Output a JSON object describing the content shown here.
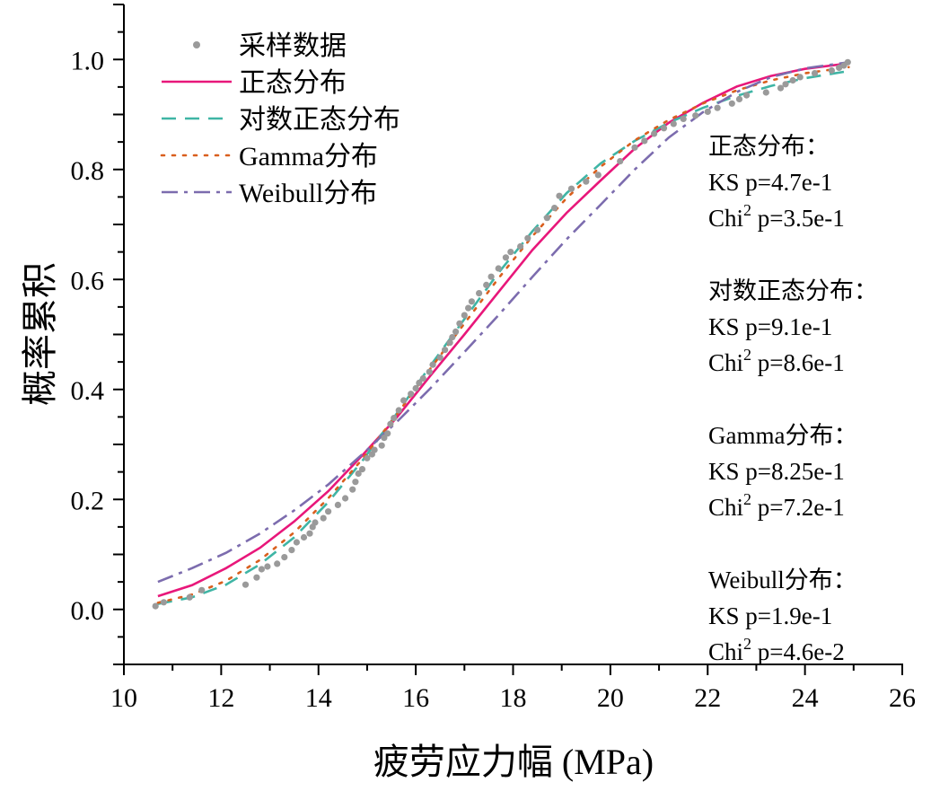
{
  "chart_data": {
    "type": "scatter+line",
    "xlabel": "疲劳应力幅 (MPa)",
    "ylabel": "概率累积",
    "xlim": [
      10,
      26
    ],
    "ylim": [
      -0.1,
      1.1
    ],
    "xticks": [
      10,
      12,
      14,
      16,
      18,
      20,
      22,
      24,
      26
    ],
    "xtick_labels": [
      "10",
      "12",
      "14",
      "16",
      "18",
      "20",
      "22",
      "24",
      "26"
    ],
    "yticks": [
      0.0,
      0.2,
      0.4,
      0.6,
      0.8,
      1.0
    ],
    "ytick_labels": [
      "0.0",
      "0.2",
      "0.4",
      "0.6",
      "0.8",
      "1.0"
    ],
    "colors": {
      "sample": "#9a9a9a",
      "normal": "#e8177a",
      "lognormal": "#3fb5a5",
      "gamma": "#d95f1e",
      "weibull": "#7c6cae"
    },
    "legend": {
      "position": "top-left",
      "entries": [
        {
          "label": "采样数据",
          "style": "points",
          "color": "#9a9a9a"
        },
        {
          "label": "正态分布",
          "style": "solid",
          "color": "#e8177a"
        },
        {
          "label": "对数正态分布",
          "style": "dashed",
          "color": "#3fb5a5"
        },
        {
          "label": "Gamma分布",
          "style": "dotted",
          "color": "#d95f1e"
        },
        {
          "label": "Weibull分布",
          "style": "dashdot",
          "color": "#7c6cae"
        }
      ]
    },
    "annotations": {
      "position": "right",
      "groups": [
        {
          "title": "正态分布：",
          "ks": "KS p=4.7e-1",
          "chi_prefix": "Chi",
          "chi_sup": "2",
          "chi_value": " p=3.5e-1"
        },
        {
          "title": "对数正态分布：",
          "ks": "KS p=9.1e-1",
          "chi_prefix": "Chi",
          "chi_sup": "2",
          "chi_value": " p=8.6e-1"
        },
        {
          "title": "Gamma分布：",
          "ks": "KS p=8.25e-1",
          "chi_prefix": "Chi",
          "chi_sup": "2",
          "chi_value": " p=7.2e-1"
        },
        {
          "title": "Weibull分布：",
          "ks": "KS p=1.9e-1",
          "chi_prefix": "Chi",
          "chi_sup": "2",
          "chi_value": " p=4.6e-2"
        }
      ]
    },
    "series": [
      {
        "name": "正态分布",
        "style": "solid",
        "x": [
          10.7,
          11.4,
          12.1,
          12.8,
          13.5,
          14.2,
          14.9,
          15.6,
          16.3,
          17.0,
          17.7,
          18.4,
          19.1,
          19.8,
          20.5,
          21.2,
          21.9,
          22.6,
          23.3,
          24.0,
          24.9
        ],
        "y": [
          0.024,
          0.044,
          0.075,
          0.112,
          0.16,
          0.215,
          0.28,
          0.348,
          0.425,
          0.5,
          0.577,
          0.654,
          0.721,
          0.78,
          0.838,
          0.885,
          0.921,
          0.951,
          0.97,
          0.983,
          0.993
        ]
      },
      {
        "name": "对数正态分布",
        "style": "dashed",
        "x": [
          10.7,
          11.4,
          12.1,
          12.8,
          13.5,
          14.2,
          14.9,
          15.6,
          16.3,
          17.0,
          17.7,
          18.4,
          19.1,
          19.8,
          20.5,
          21.2,
          21.9,
          22.6,
          23.3,
          24.0,
          24.9
        ],
        "y": [
          0.01,
          0.022,
          0.045,
          0.082,
          0.131,
          0.195,
          0.27,
          0.355,
          0.443,
          0.528,
          0.612,
          0.688,
          0.757,
          0.811,
          0.852,
          0.885,
          0.912,
          0.934,
          0.952,
          0.966,
          0.979
        ]
      },
      {
        "name": "Gamma分布",
        "style": "dotted",
        "x": [
          10.7,
          11.4,
          12.1,
          12.8,
          13.5,
          14.2,
          14.9,
          15.6,
          16.3,
          17.0,
          17.7,
          18.4,
          19.1,
          19.8,
          20.5,
          21.2,
          21.9,
          22.6,
          23.3,
          24.0,
          24.9
        ],
        "y": [
          0.012,
          0.027,
          0.052,
          0.09,
          0.14,
          0.202,
          0.273,
          0.353,
          0.438,
          0.52,
          0.602,
          0.679,
          0.748,
          0.805,
          0.853,
          0.89,
          0.92,
          0.944,
          0.962,
          0.975,
          0.986
        ]
      },
      {
        "name": "Weibull分布",
        "style": "dashdot",
        "x": [
          10.7,
          11.4,
          12.1,
          12.8,
          13.5,
          14.2,
          14.9,
          15.6,
          16.3,
          17.0,
          17.7,
          18.4,
          19.1,
          19.8,
          20.5,
          21.2,
          21.9,
          22.6,
          23.3,
          24.0,
          24.9
        ],
        "y": [
          0.05,
          0.075,
          0.103,
          0.138,
          0.18,
          0.227,
          0.282,
          0.34,
          0.402,
          0.468,
          0.535,
          0.605,
          0.673,
          0.736,
          0.8,
          0.858,
          0.904,
          0.941,
          0.968,
          0.984,
          0.995
        ]
      }
    ],
    "samples": {
      "name": "采样数据",
      "style": "points",
      "x": [
        10.65,
        10.82,
        11.35,
        11.6,
        12.5,
        12.73,
        12.83,
        12.95,
        13.15,
        13.3,
        13.45,
        13.55,
        13.7,
        13.82,
        13.88,
        13.93,
        14.1,
        14.2,
        14.4,
        14.55,
        14.7,
        14.76,
        14.82,
        14.9,
        15.0,
        15.1,
        15.15,
        15.3,
        15.35,
        15.42,
        15.48,
        15.55,
        15.65,
        15.75,
        15.9,
        16.0,
        16.07,
        16.15,
        16.28,
        16.35,
        16.5,
        16.6,
        16.7,
        16.75,
        16.82,
        16.9,
        17.0,
        17.08,
        17.15,
        17.3,
        17.45,
        17.55,
        17.7,
        17.85,
        17.95,
        18.15,
        18.3,
        18.5,
        18.7,
        18.85,
        18.95,
        19.2,
        19.5,
        19.75,
        20.2,
        20.5,
        20.7,
        20.9,
        21.1,
        21.3,
        21.5,
        21.75,
        22.0,
        22.2,
        22.5,
        22.65,
        22.8,
        23.2,
        23.5,
        23.6,
        23.75,
        23.9,
        24.2,
        24.55,
        24.7,
        24.8,
        24.88
      ],
      "y": [
        0.006,
        0.013,
        0.022,
        0.035,
        0.045,
        0.058,
        0.073,
        0.078,
        0.083,
        0.095,
        0.108,
        0.122,
        0.131,
        0.138,
        0.15,
        0.158,
        0.166,
        0.178,
        0.19,
        0.202,
        0.218,
        0.232,
        0.247,
        0.255,
        0.275,
        0.282,
        0.29,
        0.298,
        0.312,
        0.32,
        0.337,
        0.348,
        0.362,
        0.38,
        0.392,
        0.402,
        0.412,
        0.42,
        0.432,
        0.445,
        0.458,
        0.472,
        0.485,
        0.495,
        0.505,
        0.52,
        0.535,
        0.548,
        0.56,
        0.575,
        0.59,
        0.605,
        0.62,
        0.64,
        0.65,
        0.66,
        0.675,
        0.69,
        0.712,
        0.73,
        0.752,
        0.765,
        0.778,
        0.79,
        0.815,
        0.84,
        0.852,
        0.865,
        0.875,
        0.883,
        0.892,
        0.898,
        0.905,
        0.912,
        0.92,
        0.928,
        0.935,
        0.94,
        0.948,
        0.955,
        0.962,
        0.968,
        0.975,
        0.98,
        0.985,
        0.989,
        0.995
      ]
    }
  }
}
